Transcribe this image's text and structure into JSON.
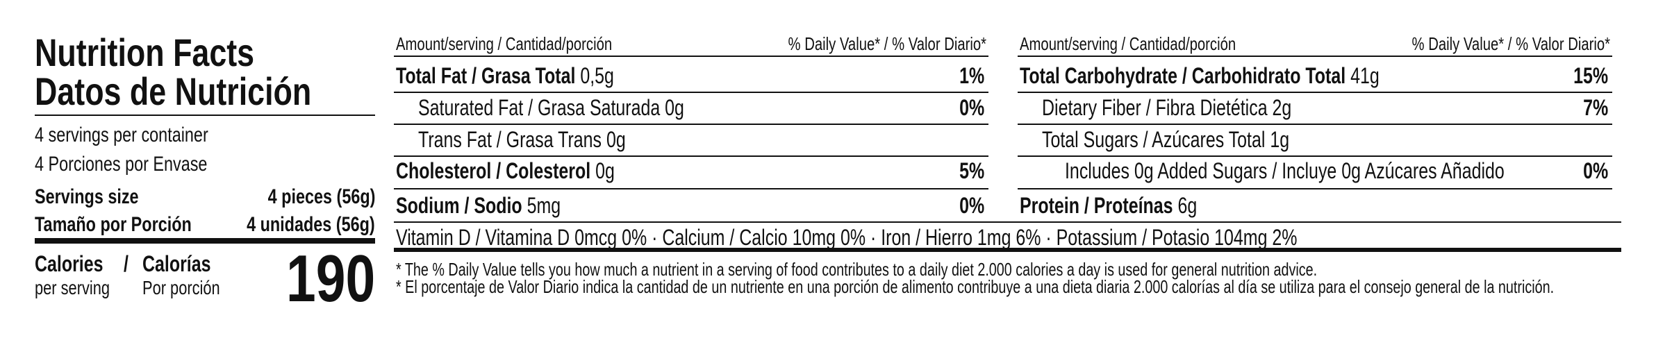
{
  "header": {
    "title_en": "Nutrition Facts",
    "title_es": "Datos de Nutrición"
  },
  "servings": {
    "per_container_en": "4 servings per container",
    "per_container_es": "4 Porciones por Envase",
    "size_label_en": "Servings size",
    "size_value_en": "4 pieces (56g)",
    "size_label_es": "Tamaño por Porción",
    "size_value_es": "4 unidades (56g)"
  },
  "calories": {
    "label_en": "Calories",
    "separator": "/",
    "label_es": "Calorías",
    "sub_en": "per serving",
    "sub_es": "Por porción",
    "value": 190
  },
  "columns": [
    {
      "header_left": "Amount/serving / Cantidad/porción",
      "header_right": "% Daily Value* / % Valor Diario*",
      "rows": [
        {
          "name": "Total Fat / Grasa Total",
          "amount": "0,5g",
          "dv": "1%",
          "bold": true,
          "indent": 0
        },
        {
          "name": "Saturated Fat / Grasa Saturada",
          "amount": "0g",
          "dv": "0%",
          "bold": false,
          "indent": 1
        },
        {
          "name": "Trans Fat / Grasa Trans",
          "amount": "0g",
          "bold": false,
          "indent": 1
        },
        {
          "name": "Cholesterol / Colesterol",
          "amount": "0g",
          "dv": "5%",
          "bold": true,
          "indent": 0
        },
        {
          "name": "Sodium / Sodio",
          "amount": "5mg",
          "dv": "0%",
          "bold": true,
          "indent": 0
        }
      ]
    },
    {
      "header_left": "Amount/serving / Cantidad/porción",
      "header_right": "% Daily Value* / % Valor Diario*",
      "rows": [
        {
          "name": "Total Carbohydrate / Carbohidrato Total",
          "amount": "41g",
          "dv": "15%",
          "bold": true,
          "indent": 0
        },
        {
          "name": "Dietary Fiber / Fibra Dietética",
          "amount": "2g",
          "dv": "7%",
          "bold": false,
          "indent": 1
        },
        {
          "name": "Total Sugars / Azúcares Total",
          "amount": "1g",
          "bold": false,
          "indent": 1
        },
        {
          "name": "Includes 0g Added Sugars / Incluye 0g Azúcares Añadido",
          "dv": "0%",
          "bold": false,
          "indent": 2
        },
        {
          "name": "Protein / Proteínas",
          "amount": "6g",
          "bold": true,
          "indent": 0
        }
      ]
    }
  ],
  "vitamins": "Vitamin D / Vitamina D 0mcg 0% · Calcium / Calcio 10mg 0% · Iron / Hierro 1mg 6% · Potassium / Potasio 104mg 2%",
  "footnotes": [
    "* The % Daily Value tells you how much a nutrient in a serving of food contributes to a daily diet 2.000 calories a day is used for general nutrition advice.",
    "* El porcentaje de Valor Diario indica la cantidad de un nutriente en una porción de alimento contribuye a una dieta diaria 2.000 calorías al día se utiliza para el consejo general de la nutrición."
  ]
}
